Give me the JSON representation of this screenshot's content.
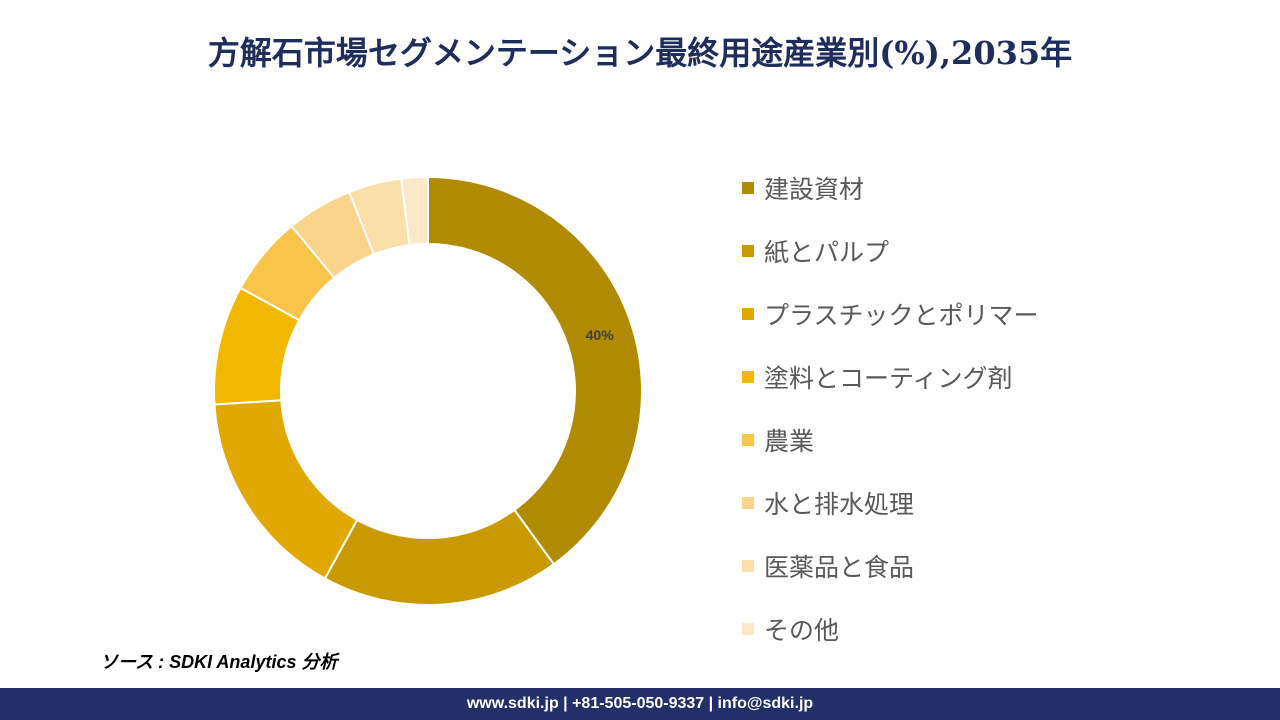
{
  "title": "方解石市場セグメンテーション最終用途産業別(%),2035年",
  "chart_data": {
    "type": "pie",
    "title": "方解石市場セグメンテーション最終用途産業別(%),2035年",
    "categories": [
      "建設資材",
      "紙とパルプ",
      "プラスチックとポリマー",
      "塗料とコーティング剤",
      "農業",
      "水と排水処理",
      "医薬品と食品",
      "その他"
    ],
    "values": [
      40,
      18,
      16,
      9,
      6,
      5,
      4,
      2
    ],
    "colors": [
      "#B08A00",
      "#C99A00",
      "#E0A800",
      "#F2B800",
      "#F8C54A",
      "#F9D48A",
      "#FADFA8",
      "#FBE8C8"
    ],
    "data_labels": [
      "40%",
      "",
      "",
      "",
      "",
      "",
      "",
      ""
    ],
    "donut": true,
    "legend_position": "right"
  },
  "source": "ソース : SDKI Analytics 分析",
  "footer": "www.sdki.jp | +81-505-050-9337 | info@sdki.jp"
}
